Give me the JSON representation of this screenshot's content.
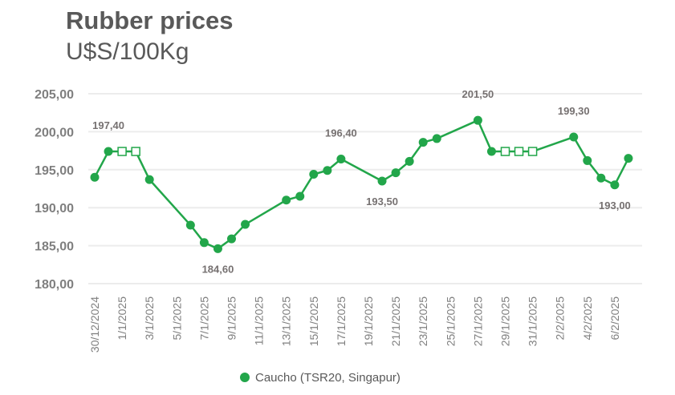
{
  "chart_data": {
    "type": "line",
    "title": "Rubber prices",
    "subtitle": "U$S/100Kg",
    "xlabel": "",
    "ylabel": "",
    "ylim": [
      180,
      205
    ],
    "y_ticks": [
      "180,00",
      "185,00",
      "190,00",
      "195,00",
      "200,00",
      "205,00"
    ],
    "y_tick_values": [
      180,
      185,
      190,
      195,
      200,
      205
    ],
    "grid": true,
    "legend_position": "bottom",
    "x_tick_labels": [
      "30/12/2024",
      "1/1/2025",
      "3/1/2025",
      "5/1/2025",
      "7/1/2025",
      "9/1/2025",
      "11/1/2025",
      "13/1/2025",
      "15/1/2025",
      "17/1/2025",
      "19/1/2025",
      "21/1/2025",
      "23/1/2025",
      "25/1/2025",
      "27/1/2025",
      "29/1/2025",
      "31/1/2025",
      "2/2/2025",
      "4/2/2025",
      "6/2/2025"
    ],
    "color": "#22a64a",
    "series": [
      {
        "name": "Caucho (TSR20, Singapur)",
        "x": [
          "30/12/2024",
          "31/12/2024",
          "1/1/2025",
          "2/1/2025",
          "3/1/2025",
          "6/1/2025",
          "7/1/2025",
          "8/1/2025",
          "9/1/2025",
          "10/1/2025",
          "13/1/2025",
          "14/1/2025",
          "15/1/2025",
          "16/1/2025",
          "17/1/2025",
          "20/1/2025",
          "21/1/2025",
          "22/1/2025",
          "23/1/2025",
          "24/1/2025",
          "27/1/2025",
          "28/1/2025",
          "29/1/2025",
          "30/1/2025",
          "31/1/2025",
          "3/2/2025",
          "4/2/2025",
          "5/2/2025",
          "6/2/2025",
          "7/2/2025"
        ],
        "values": [
          194.0,
          197.4,
          197.4,
          197.4,
          193.7,
          187.7,
          185.4,
          184.6,
          185.9,
          187.8,
          191.0,
          191.5,
          194.4,
          194.9,
          196.4,
          193.5,
          194.6,
          196.1,
          198.6,
          199.1,
          201.5,
          197.4,
          197.4,
          197.4,
          197.4,
          199.3,
          196.2,
          193.9,
          193.0,
          196.5
        ],
        "markers": [
          "filled",
          "filled",
          "hollow",
          "hollow",
          "filled",
          "filled",
          "filled",
          "filled",
          "filled",
          "filled",
          "filled",
          "filled",
          "filled",
          "filled",
          "filled",
          "filled",
          "filled",
          "filled",
          "filled",
          "filled",
          "filled",
          "filled",
          "hollow",
          "hollow",
          "hollow",
          "filled",
          "filled",
          "filled",
          "filled",
          "filled"
        ]
      }
    ],
    "data_labels": [
      {
        "x": "31/12/2024",
        "text": "197,40",
        "position": "above"
      },
      {
        "x": "8/1/2025",
        "text": "184,60",
        "position": "below"
      },
      {
        "x": "17/1/2025",
        "text": "196,40",
        "position": "above"
      },
      {
        "x": "20/1/2025",
        "text": "193,50",
        "position": "below"
      },
      {
        "x": "27/1/2025",
        "text": "201,50",
        "position": "above"
      },
      {
        "x": "3/2/2025",
        "text": "199,30",
        "position": "above"
      },
      {
        "x": "6/2/2025",
        "text": "193,00",
        "position": "below"
      }
    ]
  }
}
